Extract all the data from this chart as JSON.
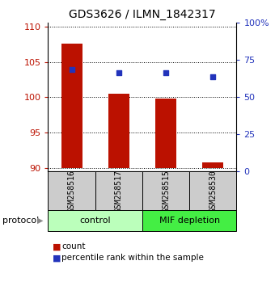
{
  "title": "GDS3626 / ILMN_1842317",
  "samples": [
    "GSM258516",
    "GSM258517",
    "GSM258515",
    "GSM258530"
  ],
  "bar_values": [
    107.6,
    100.5,
    99.8,
    90.8
  ],
  "percentile_values": [
    103.9,
    103.5,
    103.5,
    102.9
  ],
  "bar_color": "#bb1100",
  "dot_color": "#2233bb",
  "ylim_left": [
    89.5,
    110.5
  ],
  "ylim_right": [
    0,
    100
  ],
  "yticks_left": [
    90,
    95,
    100,
    105,
    110
  ],
  "yticks_right": [
    0,
    25,
    50,
    75,
    100
  ],
  "ytick_labels_right": [
    "0",
    "25",
    "50",
    "75",
    "100%"
  ],
  "groups": [
    {
      "label": "control",
      "indices": [
        0,
        1
      ],
      "color": "#bbffbb"
    },
    {
      "label": "MIF depletion",
      "indices": [
        2,
        3
      ],
      "color": "#44ee44"
    }
  ],
  "group_label": "protocol",
  "legend_count_label": "count",
  "legend_percentile_label": "percentile rank within the sample",
  "bar_bottom": 90.0,
  "sample_box_color": "#cccccc",
  "title_fontsize": 10,
  "tick_fontsize": 8,
  "bar_width": 0.45
}
